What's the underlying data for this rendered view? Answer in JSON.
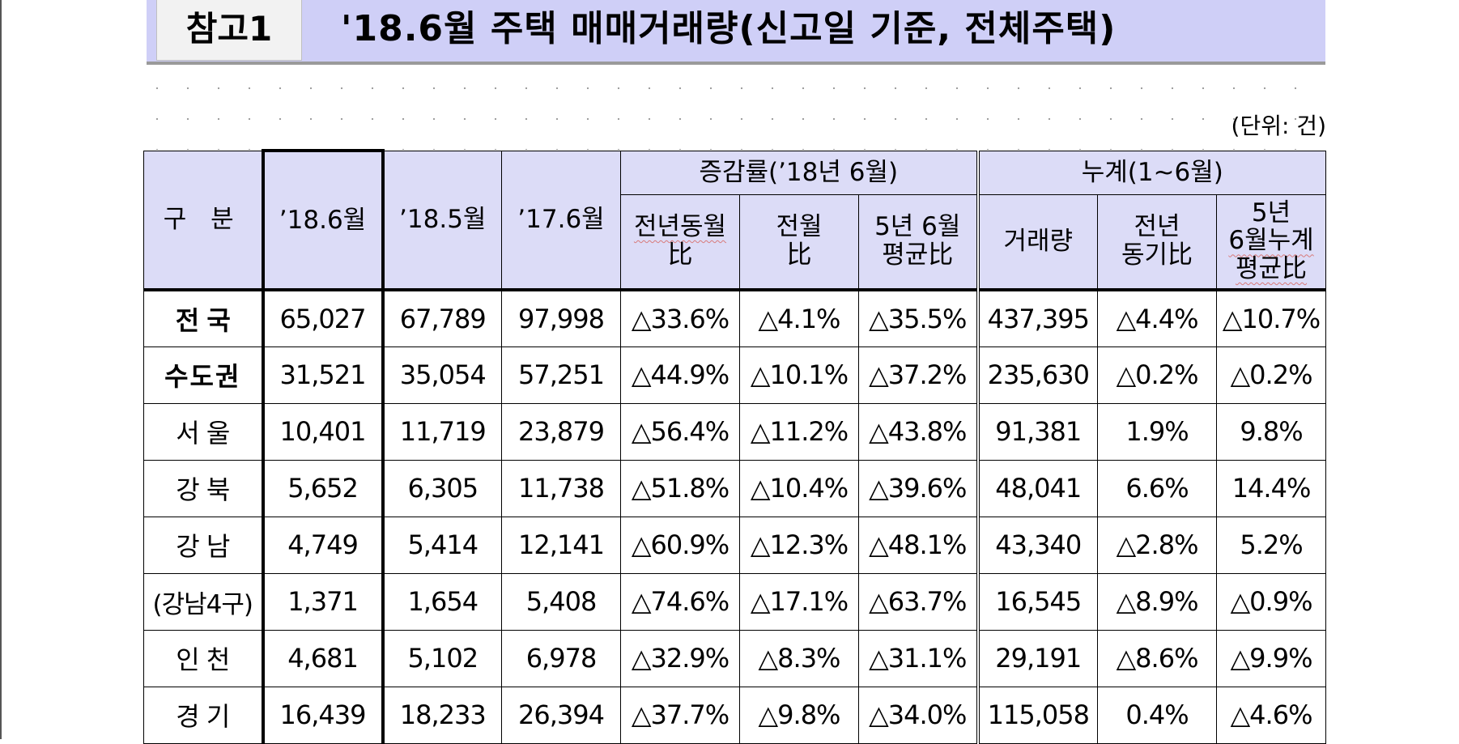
{
  "title_tag": "참고1",
  "title": "'18.6월 주택 매매거래량(신고일 기준, 전체주택)",
  "unit": "(단위: 건)",
  "headers": {
    "category": "구 분",
    "col_1806": "’18.6월",
    "col_1805": "’18.5월",
    "col_1706": "’17.6월",
    "group_rate": "증감률(’18년 6월)",
    "rate_yoy_line1": "전년동월",
    "rate_yoy_line2": "比",
    "rate_mom_line1": "전월",
    "rate_mom_line2": "比",
    "rate_5y_line1": "5년 6월",
    "rate_5y_line2": "평균比",
    "group_cum": "누계(1∼6월)",
    "cum_volume": "거래량",
    "cum_yoy_line1": "전년",
    "cum_yoy_line2": "동기比",
    "cum_5y_line1": "5년",
    "cum_5y_line2": "6월누계",
    "cum_5y_line3": "평균比"
  },
  "rows": [
    {
      "label": "전 국",
      "v1806": "65,027",
      "v1805": "67,789",
      "v1706": "97,998",
      "yoy": "△33.6%",
      "mom": "△4.1%",
      "avg5": "△35.5%",
      "cum": "437,395",
      "cum_yoy": "△4.4%",
      "cum_avg5": "△10.7%"
    },
    {
      "label": "수도권",
      "v1806": "31,521",
      "v1805": "35,054",
      "v1706": "57,251",
      "yoy": "△44.9%",
      "mom": "△10.1%",
      "avg5": "△37.2%",
      "cum": "235,630",
      "cum_yoy": "△0.2%",
      "cum_avg5": "△0.2%"
    },
    {
      "label": "서 울",
      "v1806": "10,401",
      "v1805": "11,719",
      "v1706": "23,879",
      "yoy": "△56.4%",
      "mom": "△11.2%",
      "avg5": "△43.8%",
      "cum": "91,381",
      "cum_yoy": "1.9%",
      "cum_avg5": "9.8%"
    },
    {
      "label": "강 북",
      "v1806": "5,652",
      "v1805": "6,305",
      "v1706": "11,738",
      "yoy": "△51.8%",
      "mom": "△10.4%",
      "avg5": "△39.6%",
      "cum": "48,041",
      "cum_yoy": "6.6%",
      "cum_avg5": "14.4%"
    },
    {
      "label": "강 남",
      "v1806": "4,749",
      "v1805": "5,414",
      "v1706": "12,141",
      "yoy": "△60.9%",
      "mom": "△12.3%",
      "avg5": "△48.1%",
      "cum": "43,340",
      "cum_yoy": "△2.8%",
      "cum_avg5": "5.2%"
    },
    {
      "label": "(강남4구)",
      "v1806": "1,371",
      "v1805": "1,654",
      "v1706": "5,408",
      "yoy": "△74.6%",
      "mom": "△17.1%",
      "avg5": "△63.7%",
      "cum": "16,545",
      "cum_yoy": "△8.9%",
      "cum_avg5": "△0.9%"
    },
    {
      "label": "인 천",
      "v1806": "4,681",
      "v1805": "5,102",
      "v1706": "6,978",
      "yoy": "△32.9%",
      "mom": "△8.3%",
      "avg5": "△31.1%",
      "cum": "29,191",
      "cum_yoy": "△8.6%",
      "cum_avg5": "△9.9%"
    },
    {
      "label": "경 기",
      "v1806": "16,439",
      "v1805": "18,233",
      "v1706": "26,394",
      "yoy": "△37.7%",
      "mom": "△9.8%",
      "avg5": "△34.0%",
      "cum": "115,058",
      "cum_yoy": "0.4%",
      "cum_avg5": "△4.6%"
    }
  ]
}
